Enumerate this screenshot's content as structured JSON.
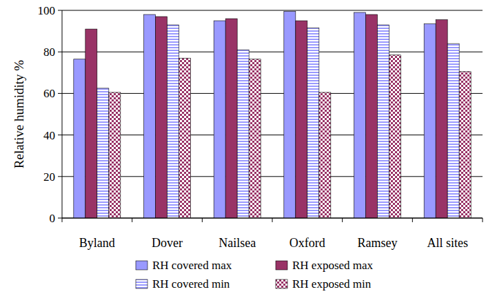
{
  "chart_data": {
    "type": "bar",
    "y_label": "Relative humidity %",
    "categories": [
      "Byland",
      "Dover",
      "Nailsea",
      "Oxford",
      "Ramsey",
      "All sites"
    ],
    "series": [
      {
        "name": "RH covered max",
        "color": "#9999ff",
        "values": [
          76.5,
          98,
          95,
          99.5,
          99,
          93.5
        ]
      },
      {
        "name": "RH exposed max",
        "color": "#993366",
        "values": [
          91,
          97,
          96,
          95,
          98,
          95.5
        ]
      },
      {
        "name": "RH covered min",
        "color": "#9999ff",
        "values": [
          62.5,
          93,
          81,
          91.5,
          93,
          84
        ]
      },
      {
        "name": "RH exposed min",
        "color": "#993366",
        "values": [
          60.5,
          77,
          76.5,
          60.5,
          78.5,
          70.5
        ]
      }
    ],
    "ylim": [
      0,
      100
    ],
    "yticks": [
      0,
      20,
      40,
      60,
      80,
      100
    ],
    "grid": true,
    "legend": "bottom"
  }
}
